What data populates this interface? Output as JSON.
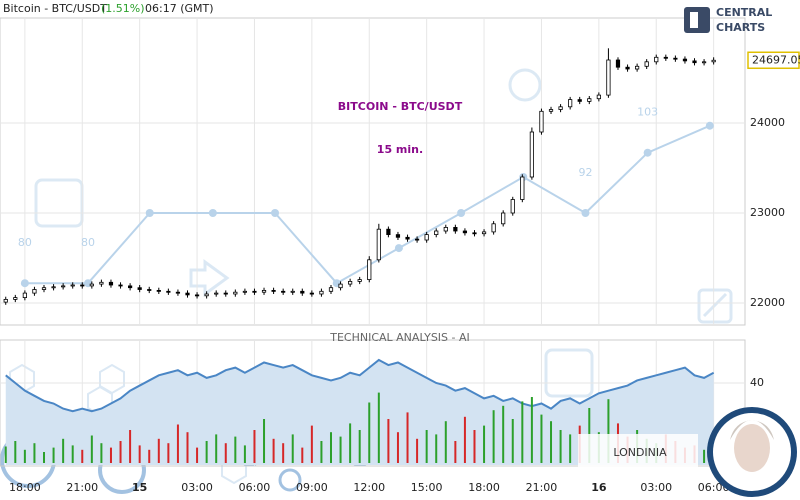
{
  "header": {
    "symbol": "Bitcoin - BTC/USDT",
    "change": "(1.51%)",
    "time": "06:17 (GMT)"
  },
  "logo": {
    "line1": "CENTRAL",
    "line2": "CHARTS"
  },
  "brand": "LONDINIA",
  "chart_data": {
    "type": "candlestick",
    "title": "BITCOIN - BTC/USDT",
    "subtitle": "15 min.",
    "annotation": "TECHNICAL  ANALYSIS - AI",
    "x": [
      0,
      2,
      4,
      6,
      8,
      10,
      12,
      14,
      16,
      18,
      20,
      22,
      24,
      26,
      28,
      30,
      32,
      34,
      36,
      38,
      40,
      42,
      44,
      46,
      48,
      50,
      52,
      54,
      56,
      58,
      60,
      62,
      64,
      66,
      68,
      70,
      72,
      74,
      76,
      78,
      80,
      82,
      84,
      86,
      88,
      90,
      92,
      94,
      96,
      98,
      100,
      102,
      104,
      106,
      108,
      110,
      112,
      114,
      116,
      118,
      120,
      122,
      124,
      126,
      128,
      130,
      132,
      134,
      136,
      138,
      140,
      142,
      144,
      146,
      148
    ],
    "open": [
      22010,
      22040,
      22060,
      22110,
      22150,
      22170,
      22180,
      22190,
      22200,
      22190,
      22210,
      22230,
      22200,
      22190,
      22170,
      22150,
      22140,
      22130,
      22120,
      22110,
      22090,
      22080,
      22100,
      22110,
      22100,
      22120,
      22130,
      22120,
      22140,
      22130,
      22120,
      22130,
      22110,
      22100,
      22130,
      22170,
      22210,
      22240,
      22260,
      22480,
      22820,
      22760,
      22730,
      22710,
      22700,
      22760,
      22800,
      22840,
      22800,
      22780,
      22770,
      22790,
      22880,
      23000,
      23150,
      23400,
      23900,
      24130,
      24150,
      24180,
      24260,
      24240,
      24270,
      24310,
      24700,
      24620,
      24600,
      24630,
      24680,
      24730,
      24720,
      24710,
      24690,
      24670,
      24680
    ],
    "high": [
      22070,
      22090,
      22140,
      22180,
      22200,
      22210,
      22220,
      22230,
      22230,
      22240,
      22260,
      22260,
      22230,
      22220,
      22200,
      22180,
      22170,
      22160,
      22150,
      22140,
      22120,
      22130,
      22140,
      22140,
      22150,
      22160,
      22160,
      22170,
      22170,
      22160,
      22160,
      22160,
      22140,
      22160,
      22200,
      22240,
      22270,
      22290,
      22520,
      22880,
      22850,
      22790,
      22760,
      22740,
      22790,
      22830,
      22870,
      22870,
      22830,
      22810,
      22820,
      22910,
      23030,
      23180,
      23430,
      23950,
      24160,
      24180,
      24210,
      24290,
      24290,
      24300,
      24340,
      24830,
      24730,
      24650,
      24660,
      24710,
      24760,
      24760,
      24750,
      24740,
      24720,
      24710,
      24730
    ],
    "low": [
      21980,
      22010,
      22030,
      22080,
      22120,
      22140,
      22150,
      22160,
      22160,
      22160,
      22180,
      22170,
      22160,
      22140,
      22120,
      22110,
      22100,
      22090,
      22080,
      22060,
      22050,
      22050,
      22070,
      22070,
      22070,
      22090,
      22090,
      22090,
      22100,
      22090,
      22090,
      22080,
      22070,
      22070,
      22100,
      22140,
      22180,
      22210,
      22230,
      22450,
      22730,
      22700,
      22680,
      22670,
      22670,
      22730,
      22770,
      22770,
      22750,
      22740,
      22740,
      22760,
      22850,
      22970,
      23120,
      23370,
      23870,
      24100,
      24120,
      24150,
      24210,
      24210,
      24240,
      24280,
      24590,
      24570,
      24570,
      24600,
      24650,
      24690,
      24680,
      24660,
      24640,
      24640,
      24650
    ],
    "close": [
      22040,
      22060,
      22110,
      22150,
      22170,
      22180,
      22190,
      22200,
      22190,
      22210,
      22230,
      22200,
      22190,
      22170,
      22150,
      22140,
      22130,
      22120,
      22110,
      22090,
      22080,
      22100,
      22110,
      22100,
      22120,
      22130,
      22120,
      22140,
      22130,
      22120,
      22130,
      22110,
      22100,
      22130,
      22170,
      22210,
      22240,
      22260,
      22480,
      22820,
      22760,
      22730,
      22710,
      22700,
      22760,
      22800,
      22840,
      22800,
      22780,
      22770,
      22790,
      22880,
      23000,
      23150,
      23400,
      23900,
      24130,
      24150,
      24180,
      24260,
      24240,
      24270,
      24310,
      24700,
      24620,
      24600,
      24630,
      24680,
      24730,
      24720,
      24710,
      24690,
      24670,
      24680,
      24697.05
    ],
    "color": "#000000",
    "xlim": [
      -1.2,
      155.6
    ],
    "xticks": [
      {
        "value": 4,
        "label": "18:00"
      },
      {
        "value": 16,
        "label": "21:00"
      },
      {
        "value": 28,
        "label": "15"
      },
      {
        "value": 40,
        "label": "03:00"
      },
      {
        "value": 52,
        "label": "06:00"
      },
      {
        "value": 64,
        "label": "09:00"
      },
      {
        "value": 76,
        "label": "12:00"
      },
      {
        "value": 88,
        "label": "15:00"
      },
      {
        "value": 100,
        "label": "18:00"
      },
      {
        "value": 112,
        "label": "21:00"
      },
      {
        "value": 124,
        "label": "16"
      },
      {
        "value": 136,
        "label": "03:00"
      },
      {
        "value": 148,
        "label": "06:00"
      }
    ],
    "ylim": [
      21800,
      25150
    ],
    "yticks": [
      22000,
      23000,
      24000
    ],
    "grid": true,
    "overlay": {
      "color": "#b9d3ea",
      "x": [
        4,
        17.2,
        30.1,
        43.3,
        56.3,
        69.2,
        82.2,
        95.2,
        108.2,
        121.2,
        134.2,
        147.2
      ],
      "values": [
        22220,
        22220,
        23000,
        23000,
        23000,
        22220,
        22610,
        23000,
        23400,
        23000,
        23670,
        23970
      ],
      "labels": [
        "80",
        "80",
        null,
        null,
        null,
        null,
        null,
        null,
        null,
        "92",
        "103",
        null
      ]
    },
    "oscillator": {
      "color": "#4a86c5",
      "fill": "#d3e3f2",
      "values": [
        41.5,
        40,
        38.5,
        37.5,
        36.5,
        36,
        35,
        34.5,
        35,
        34.5,
        35,
        36,
        37,
        38.5,
        39.5,
        40.5,
        41.5,
        42,
        42.5,
        41.5,
        42,
        41,
        41.5,
        42.5,
        43,
        42,
        43,
        44,
        43.5,
        43,
        43.5,
        42.5,
        41.5,
        41,
        40.5,
        41,
        42,
        41.5,
        43,
        44.5,
        43.5,
        44,
        43,
        42,
        41,
        40,
        39.5,
        38.5,
        39,
        38,
        37,
        37.5,
        36.5,
        37,
        36,
        35.5,
        36,
        35,
        36.5,
        37,
        36,
        37,
        38,
        38.5,
        39,
        39.5,
        40.5,
        41,
        41.5,
        42,
        42.5,
        43,
        41.5,
        41,
        42
      ],
      "ylim": [
        24,
        48
      ],
      "yticks": [
        40
      ]
    },
    "volume": {
      "up_color": "#2ca02c",
      "down_color": "#d62728",
      "values": [
        15,
        20,
        12,
        18,
        10,
        14,
        22,
        16,
        12,
        25,
        18,
        14,
        20,
        30,
        16,
        12,
        22,
        18,
        35,
        28,
        14,
        20,
        26,
        18,
        24,
        16,
        30,
        40,
        22,
        18,
        26,
        14,
        34,
        20,
        28,
        24,
        36,
        30,
        55,
        64,
        40,
        28,
        46,
        22,
        30,
        26,
        38,
        20,
        42,
        30,
        34,
        48,
        52,
        40,
        56,
        60,
        44,
        38,
        30,
        26,
        34,
        50,
        28,
        58,
        36,
        24,
        30,
        22,
        18,
        26,
        20,
        14,
        16,
        12,
        10
      ],
      "ylim": [
        0,
        100
      ]
    }
  }
}
